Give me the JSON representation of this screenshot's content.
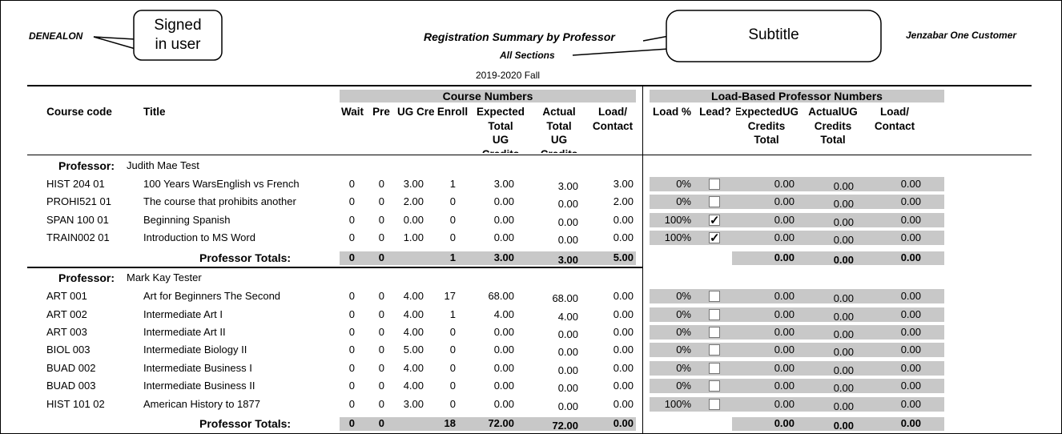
{
  "header": {
    "user": "DENEALON",
    "title": "Registration Summary by Professor",
    "subtitle": "All Sections",
    "term": "2019-2020 Fall",
    "customer": "Jenzabar One Customer"
  },
  "callouts": {
    "user": [
      "Signed",
      "in user"
    ],
    "subtitle": "Subtitle"
  },
  "groups": {
    "course_numbers": "Course Numbers",
    "load_based": "Load-Based Professor Numbers"
  },
  "columns": [
    [
      "Course code"
    ],
    [
      "Title"
    ],
    [
      "Wait"
    ],
    [
      "Pre"
    ],
    [
      "UG Cre"
    ],
    [
      "Enroll"
    ],
    [
      "Expected",
      "Total",
      "UG",
      "Credits"
    ],
    [
      "Actual",
      "Total",
      "UG",
      "Credits"
    ],
    [
      "Load/",
      "Contact"
    ],
    [
      "Load %"
    ],
    [
      "Lead?"
    ],
    [
      "ExpectedUG",
      "Credits",
      "Total"
    ],
    [
      "ActualUG",
      "Credits",
      "Total"
    ],
    [
      "Load/",
      "Contact"
    ]
  ],
  "professors": [
    {
      "label": "Professor:",
      "name": "Judith Mae Test",
      "rows": [
        [
          "HIST 204  01",
          "100 Years WarsEnglish vs French",
          "0",
          "0",
          "3.00",
          "1",
          "3.00",
          "3.00",
          "3.00",
          "0%",
          false,
          "0.00",
          "0.00",
          "0.00"
        ],
        [
          "PROHI521  01",
          "The course that prohibits another",
          "0",
          "0",
          "2.00",
          "0",
          "0.00",
          "0.00",
          "2.00",
          "0%",
          false,
          "0.00",
          "0.00",
          "0.00"
        ],
        [
          "SPAN 100  01",
          "Beginning Spanish",
          "0",
          "0",
          "0.00",
          "0",
          "0.00",
          "0.00",
          "0.00",
          "100%",
          true,
          "0.00",
          "0.00",
          "0.00"
        ],
        [
          "TRAIN002  01",
          "Introduction to MS Word",
          "0",
          "0",
          "1.00",
          "0",
          "0.00",
          "0.00",
          "0.00",
          "100%",
          true,
          "0.00",
          "0.00",
          "0.00"
        ]
      ],
      "totals": {
        "label": "Professor Totals:",
        "wait": "0",
        "pre": "0",
        "enroll": "1",
        "expected": "3.00",
        "actual": "3.00",
        "load": "5.00",
        "expected_ug": "0.00",
        "actual_ug": "0.00",
        "load_contact": "0.00"
      }
    },
    {
      "label": "Professor:",
      "name": "Mark Kay Tester",
      "rows": [
        [
          "ART  001",
          "Art for Beginners The Second",
          "0",
          "0",
          "4.00",
          "17",
          "68.00",
          "68.00",
          "0.00",
          "0%",
          false,
          "0.00",
          "0.00",
          "0.00"
        ],
        [
          "ART  002",
          "Intermediate Art I",
          "0",
          "0",
          "4.00",
          "1",
          "4.00",
          "4.00",
          "0.00",
          "0%",
          false,
          "0.00",
          "0.00",
          "0.00"
        ],
        [
          "ART  003",
          "Intermediate Art II",
          "0",
          "0",
          "4.00",
          "0",
          "0.00",
          "0.00",
          "0.00",
          "0%",
          false,
          "0.00",
          "0.00",
          "0.00"
        ],
        [
          "BIOL 003",
          "Intermediate Biology II",
          "0",
          "0",
          "5.00",
          "0",
          "0.00",
          "0.00",
          "0.00",
          "0%",
          false,
          "0.00",
          "0.00",
          "0.00"
        ],
        [
          "BUAD 002",
          "Intermediate Business I",
          "0",
          "0",
          "4.00",
          "0",
          "0.00",
          "0.00",
          "0.00",
          "0%",
          false,
          "0.00",
          "0.00",
          "0.00"
        ],
        [
          "BUAD 003",
          "Intermediate Business II",
          "0",
          "0",
          "4.00",
          "0",
          "0.00",
          "0.00",
          "0.00",
          "0%",
          false,
          "0.00",
          "0.00",
          "0.00"
        ],
        [
          "HIST 101  02",
          "American History to 1877",
          "0",
          "0",
          "3.00",
          "0",
          "0.00",
          "0.00",
          "0.00",
          "100%",
          false,
          "0.00",
          "0.00",
          "0.00"
        ]
      ],
      "totals": {
        "label": "Professor Totals:",
        "wait": "0",
        "pre": "0",
        "enroll": "18",
        "expected": "72.00",
        "actual": "72.00",
        "load": "0.00",
        "expected_ug": "0.00",
        "actual_ug": "0.00",
        "load_contact": "0.00"
      }
    }
  ]
}
